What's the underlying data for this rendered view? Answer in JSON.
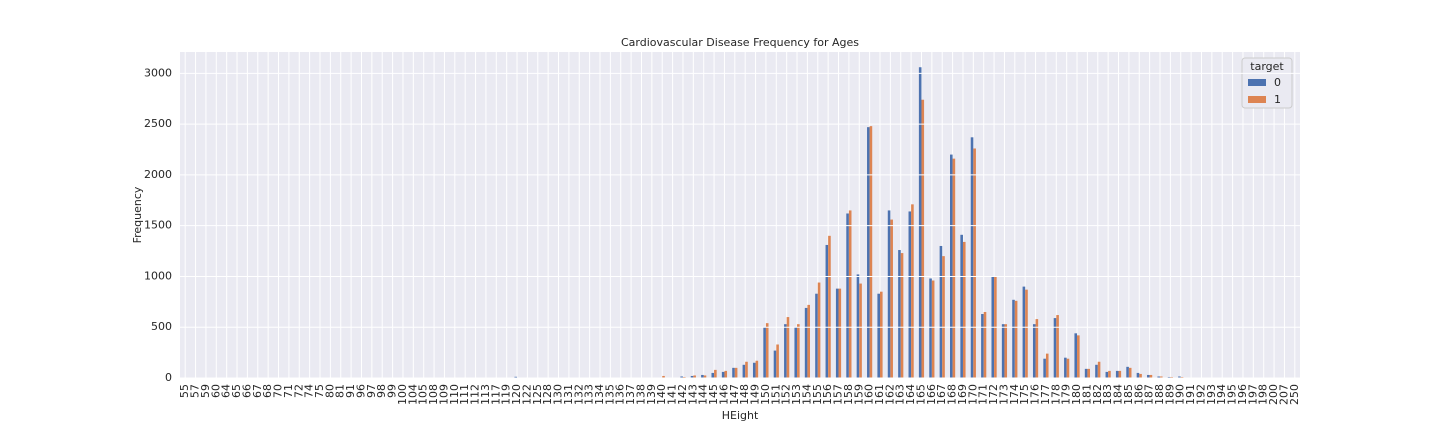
{
  "chart_data": {
    "type": "bar",
    "title": "Cardiovascular Disease Frequency for Ages",
    "xlabel": "HEight",
    "ylabel": "Frequency",
    "categories": [
      55,
      57,
      59,
      60,
      64,
      65,
      66,
      67,
      68,
      70,
      71,
      72,
      74,
      75,
      80,
      81,
      91,
      96,
      97,
      98,
      99,
      100,
      104,
      105,
      108,
      109,
      110,
      111,
      112,
      113,
      117,
      119,
      120,
      122,
      125,
      128,
      130,
      131,
      132,
      133,
      134,
      135,
      136,
      137,
      138,
      139,
      140,
      141,
      142,
      143,
      144,
      145,
      146,
      147,
      148,
      149,
      150,
      151,
      152,
      153,
      154,
      155,
      156,
      157,
      158,
      159,
      160,
      161,
      162,
      163,
      164,
      165,
      166,
      167,
      168,
      169,
      170,
      171,
      172,
      173,
      174,
      175,
      176,
      177,
      178,
      179,
      180,
      181,
      182,
      183,
      184,
      185,
      186,
      187,
      188,
      189,
      190,
      191,
      192,
      193,
      194,
      195,
      196,
      197,
      198,
      200,
      207,
      250
    ],
    "legend_title": "target",
    "legend": "upper right",
    "grid": true,
    "series": [
      {
        "name": "0",
        "color": "#4c72b0",
        "values": [
          1,
          1,
          1,
          1,
          1,
          1,
          1,
          1,
          1,
          1,
          1,
          1,
          1,
          1,
          1,
          1,
          1,
          1,
          1,
          1,
          1,
          1,
          1,
          1,
          1,
          1,
          1,
          2,
          1,
          1,
          1,
          2,
          12,
          2,
          3,
          3,
          3,
          2,
          2,
          2,
          3,
          3,
          3,
          4,
          4,
          5,
          5,
          5,
          15,
          20,
          30,
          50,
          60,
          100,
          130,
          150,
          500,
          270,
          530,
          500,
          690,
          830,
          1310,
          880,
          1620,
          1020,
          2470,
          830,
          1650,
          1260,
          1640,
          3060,
          980,
          1300,
          2200,
          1410,
          2370,
          630,
          1000,
          530,
          770,
          900,
          530,
          190,
          590,
          200,
          440,
          90,
          130,
          60,
          70,
          110,
          50,
          30,
          15,
          10,
          15,
          5,
          3,
          2,
          1,
          1,
          1,
          1,
          1,
          1,
          1,
          1
        ]
      },
      {
        "name": "1",
        "color": "#dd8452",
        "values": [
          1,
          1,
          1,
          1,
          1,
          1,
          1,
          1,
          1,
          1,
          1,
          1,
          1,
          1,
          1,
          1,
          1,
          1,
          1,
          1,
          1,
          1,
          1,
          1,
          1,
          1,
          1,
          1,
          1,
          1,
          1,
          1,
          3,
          2,
          3,
          3,
          3,
          2,
          2,
          2,
          3,
          3,
          3,
          4,
          4,
          5,
          20,
          5,
          10,
          25,
          25,
          80,
          70,
          100,
          160,
          170,
          540,
          330,
          600,
          530,
          720,
          940,
          1400,
          880,
          1650,
          930,
          2480,
          850,
          1560,
          1230,
          1710,
          2740,
          960,
          1200,
          2160,
          1340,
          2260,
          650,
          1000,
          530,
          760,
          870,
          580,
          240,
          620,
          190,
          420,
          90,
          160,
          70,
          70,
          100,
          40,
          30,
          15,
          10,
          10,
          5,
          2,
          2,
          1,
          1,
          1,
          1,
          1,
          1,
          1,
          1
        ]
      }
    ],
    "ylim": [
      0,
      3210
    ],
    "yticks": [
      0,
      500,
      1000,
      1500,
      2000,
      2500,
      3000
    ]
  }
}
